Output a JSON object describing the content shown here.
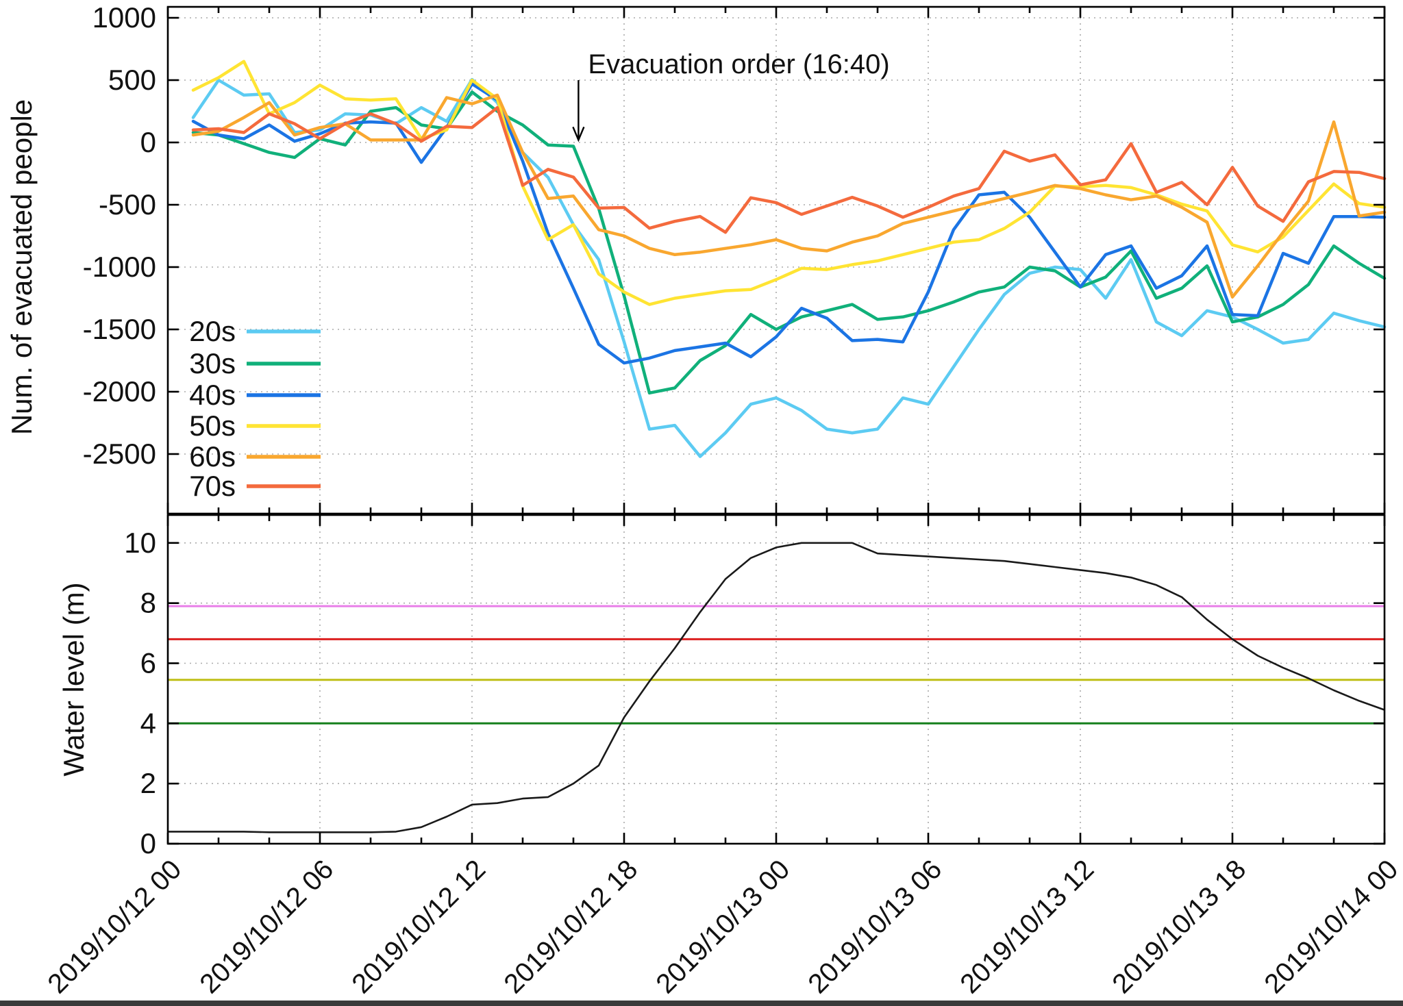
{
  "figure": {
    "background": "#ffffff",
    "footer_bar_color": "#3a3a3a"
  },
  "chart_data": {
    "type": "line",
    "x_axis": {
      "start_label": "2019/10/12 00",
      "end_label": "2019/10/14 00",
      "hours_total": 48,
      "major_tick_every_hours": 6,
      "minor_tick_every_hours": 2,
      "tick_labels": [
        "2019/10/12 00",
        "2019/10/12 06",
        "2019/10/12 12",
        "2019/10/12 18",
        "2019/10/13 00",
        "2019/10/13 06",
        "2019/10/13 12",
        "2019/10/13 18",
        "2019/10/14 00"
      ]
    },
    "panels": [
      {
        "id": "evacuated-people",
        "ylabel": "Num. of evacuated people",
        "ylim": [
          -2978,
          1088
        ],
        "yticks": [
          1000,
          500,
          0,
          -500,
          -1000,
          -1500,
          -2000,
          -2500
        ],
        "grid": true,
        "legend_position": "bottom-left",
        "annotation": {
          "text": "Evacuation order (16:40)",
          "x_hour": 16.2,
          "arrow_tip_value": 20,
          "arrow_tail_value": 500
        },
        "series": [
          {
            "name": "20s",
            "color": "#5CCBF2",
            "start_hour": 1,
            "values": [
              200,
              500,
              380,
              390,
              80,
              100,
              230,
              220,
              150,
              280,
              170,
              505,
              320,
              -80,
              -280,
              -660,
              -940,
              -1600,
              -2300,
              -2270,
              -2520,
              -2330,
              -2100,
              -2050,
              -2150,
              -2300,
              -2330,
              -2300,
              -2050,
              -2100,
              -1800,
              -1500,
              -1220,
              -1050,
              -1000,
              -1020,
              -1250,
              -940,
              -1440,
              -1550,
              -1350,
              -1400,
              -1500,
              -1610,
              -1580,
              -1370,
              -1430,
              -1480
            ]
          },
          {
            "name": "30s",
            "color": "#10B07A",
            "start_hour": 1,
            "values": [
              80,
              60,
              -10,
              -80,
              -120,
              30,
              -20,
              250,
              280,
              140,
              110,
              405,
              250,
              140,
              -20,
              -30,
              -530,
              -1230,
              -2010,
              -1970,
              -1750,
              -1630,
              -1380,
              -1500,
              -1400,
              -1350,
              -1300,
              -1420,
              -1400,
              -1350,
              -1280,
              -1200,
              -1160,
              -1000,
              -1030,
              -1160,
              -1080,
              -870,
              -1250,
              -1170,
              -990,
              -1440,
              -1400,
              -1300,
              -1140,
              -830,
              -970,
              -1090
            ]
          },
          {
            "name": "40s",
            "color": "#1B74E4",
            "start_hour": 1,
            "values": [
              170,
              60,
              30,
              140,
              10,
              70,
              155,
              165,
              155,
              -160,
              120,
              470,
              340,
              -150,
              -730,
              -1170,
              -1620,
              -1770,
              -1730,
              -1670,
              -1640,
              -1610,
              -1720,
              -1560,
              -1330,
              -1410,
              -1590,
              -1580,
              -1600,
              -1200,
              -700,
              -420,
              -400,
              -600,
              -880,
              -1160,
              -900,
              -830,
              -1170,
              -1070,
              -830,
              -1380,
              -1390,
              -890,
              -970,
              -595,
              -595,
              -600
            ]
          },
          {
            "name": "50s",
            "color": "#FFE433",
            "start_hour": 1,
            "values": [
              420,
              520,
              650,
              230,
              320,
              460,
              350,
              340,
              350,
              30,
              100,
              500,
              350,
              -350,
              -780,
              -660,
              -1055,
              -1200,
              -1300,
              -1250,
              -1220,
              -1190,
              -1180,
              -1100,
              -1010,
              -1020,
              -980,
              -950,
              -900,
              -850,
              -800,
              -780,
              -690,
              -560,
              -350,
              -356,
              -345,
              -362,
              -420,
              -495,
              -550,
              -822,
              -878,
              -758,
              -545,
              -333,
              -490,
              -520
            ]
          },
          {
            "name": "60s",
            "color": "#F9A72F",
            "start_hour": 1,
            "values": [
              60,
              90,
              200,
              320,
              60,
              120,
              150,
              20,
              20,
              20,
              360,
              310,
              380,
              -80,
              -450,
              -430,
              -700,
              -750,
              -850,
              -900,
              -880,
              -850,
              -820,
              -780,
              -850,
              -870,
              -800,
              -750,
              -650,
              -600,
              -550,
              -500,
              -450,
              -400,
              -345,
              -370,
              -420,
              -460,
              -430,
              -520,
              -640,
              -1240,
              -990,
              -720,
              -470,
              165,
              -590,
              -560
            ]
          },
          {
            "name": "70s",
            "color": "#F46A3D",
            "start_hour": 1,
            "values": [
              100,
              110,
              80,
              230,
              150,
              30,
              150,
              230,
              150,
              10,
              130,
              120,
              280,
              -344,
              -216,
              -278,
              -527,
              -522,
              -688,
              -633,
              -594,
              -721,
              -444,
              -483,
              -577,
              -510,
              -440,
              -510,
              -600,
              -520,
              -430,
              -370,
              -70,
              -150,
              -100,
              -340,
              -300,
              -10,
              -400,
              -320,
              -500,
              -200,
              -510,
              -633,
              -316,
              -233,
              -240,
              -290
            ]
          }
        ]
      },
      {
        "id": "water-level",
        "ylabel": "Water level (m)",
        "ylim": [
          0,
          10.93
        ],
        "yticks": [
          0,
          2,
          4,
          6,
          8,
          10
        ],
        "grid": true,
        "series": [
          {
            "name": "water-level",
            "color": "#1a1a1a",
            "start_hour": 0,
            "values": [
              0.4,
              0.4,
              0.4,
              0.4,
              0.38,
              0.38,
              0.38,
              0.38,
              0.38,
              0.4,
              0.55,
              0.9,
              1.3,
              1.35,
              1.5,
              1.55,
              2.0,
              2.6,
              4.2,
              5.4,
              6.5,
              7.7,
              8.8,
              9.5,
              9.85,
              10.0,
              10.0,
              10.0,
              9.65,
              9.6,
              9.55,
              9.5,
              9.45,
              9.4,
              9.3,
              9.2,
              9.1,
              9.0,
              8.85,
              8.6,
              8.2,
              7.45,
              6.8,
              6.25,
              5.85,
              5.5,
              5.1,
              4.75,
              4.45
            ]
          }
        ],
        "ref_lines": [
          {
            "value": 7.9,
            "color": "#E87EE8"
          },
          {
            "value": 6.8,
            "color": "#DC1F1F"
          },
          {
            "value": 5.45,
            "color": "#BFBF16"
          },
          {
            "value": 4.0,
            "color": "#15801C"
          }
        ]
      }
    ]
  }
}
